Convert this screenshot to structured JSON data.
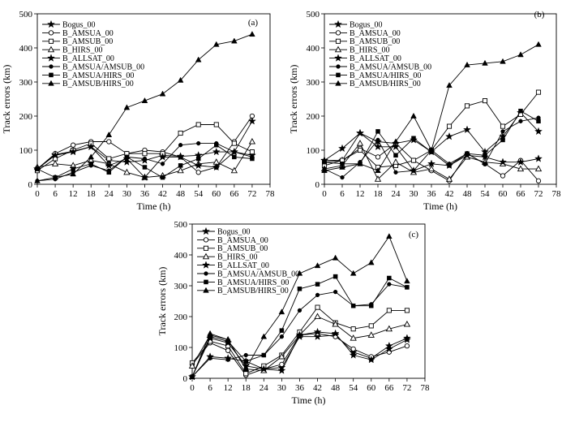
{
  "x_ticks": [
    0,
    6,
    12,
    18,
    24,
    30,
    36,
    42,
    48,
    54,
    60,
    66,
    72,
    78
  ],
  "y_ticks": [
    0,
    100,
    200,
    300,
    400,
    500
  ],
  "chart_data": [
    {
      "type": "line",
      "panel_label": "(a)",
      "xlabel": "Time (h)",
      "ylabel": "Track errors (km)",
      "xlim": [
        0,
        78
      ],
      "ylim": [
        0,
        500
      ],
      "legend_position": "top-left",
      "series": [
        {
          "name": "Bogus_00",
          "marker": "star",
          "x": [
            0,
            6,
            12,
            18,
            24,
            30,
            36,
            42,
            48,
            54,
            60,
            66,
            72
          ],
          "values": [
            45,
            87,
            97,
            110,
            70,
            65,
            70,
            85,
            82,
            85,
            95,
            95,
            85
          ]
        },
        {
          "name": "B_AMSUA_00",
          "marker": "circle",
          "x": [
            0,
            6,
            12,
            18,
            24,
            30,
            36,
            42,
            48,
            54,
            60,
            66,
            72
          ],
          "values": [
            45,
            90,
            115,
            125,
            125,
            90,
            100,
            95,
            80,
            35,
            50,
            125,
            200
          ]
        },
        {
          "name": "B_AMSUB_00",
          "marker": "square-open",
          "x": [
            0,
            6,
            12,
            18,
            24,
            30,
            36,
            42,
            48,
            54,
            60,
            66,
            72
          ],
          "values": [
            40,
            75,
            100,
            120,
            75,
            90,
            90,
            90,
            150,
            175,
            175,
            120,
            95
          ]
        },
        {
          "name": "B_HIRS_00",
          "marker": "triangle-open",
          "x": [
            0,
            6,
            12,
            18,
            24,
            30,
            36,
            42,
            48,
            54,
            60,
            66,
            72
          ],
          "values": [
            50,
            60,
            55,
            70,
            60,
            35,
            20,
            25,
            40,
            60,
            65,
            40,
            125
          ]
        },
        {
          "name": "B_ALLSAT_00",
          "marker": "star",
          "x": [
            0,
            6,
            12,
            18,
            24,
            30,
            36,
            42,
            48,
            54,
            60,
            66,
            72
          ],
          "values": [
            45,
            85,
            95,
            110,
            55,
            75,
            20,
            80,
            80,
            55,
            50,
            95,
            185
          ]
        },
        {
          "name": "B_AMSUA/AMSUB_00",
          "marker": "dot",
          "x": [
            0,
            6,
            12,
            18,
            24,
            30,
            36,
            42,
            48,
            54,
            60,
            66,
            72
          ],
          "values": [
            10,
            15,
            35,
            55,
            40,
            80,
            75,
            60,
            115,
            120,
            120,
            95,
            80
          ]
        },
        {
          "name": "B_AMSUA/HIRS_00",
          "marker": "square",
          "x": [
            0,
            6,
            12,
            18,
            24,
            30,
            36,
            42,
            48,
            54,
            60,
            66,
            72
          ],
          "values": [
            45,
            20,
            45,
            60,
            35,
            80,
            50,
            20,
            55,
            75,
            115,
            80,
            75
          ]
        },
        {
          "name": "B_AMSUB/HIRS_00",
          "marker": "triangle",
          "x": [
            0,
            6,
            12,
            18,
            24,
            30,
            36,
            42,
            48,
            54,
            60,
            66,
            72
          ],
          "values": [
            10,
            20,
            30,
            80,
            145,
            225,
            245,
            265,
            305,
            365,
            410,
            420,
            440
          ]
        }
      ]
    },
    {
      "type": "line",
      "panel_label": "(b)",
      "xlabel": "Time (h)",
      "ylabel": "Track errors (km)",
      "xlim": [
        0,
        78
      ],
      "ylim": [
        0,
        500
      ],
      "legend_position": "top-left",
      "series": [
        {
          "name": "Bogus_00",
          "marker": "star",
          "x": [
            0,
            6,
            12,
            18,
            24,
            30,
            36,
            42,
            48,
            54,
            60,
            66,
            72
          ],
          "values": [
            70,
            70,
            150,
            125,
            120,
            130,
            95,
            140,
            160,
            95,
            140,
            210,
            155
          ]
        },
        {
          "name": "B_AMSUA_00",
          "marker": "circle",
          "x": [
            0,
            6,
            12,
            18,
            24,
            30,
            36,
            42,
            48,
            54,
            60,
            66,
            72
          ],
          "values": [
            65,
            70,
            105,
            80,
            120,
            70,
            40,
            10,
            90,
            60,
            25,
            70,
            10
          ]
        },
        {
          "name": "B_AMSUB_00",
          "marker": "square-open",
          "x": [
            0,
            6,
            12,
            18,
            24,
            30,
            36,
            42,
            48,
            54,
            60,
            66,
            72
          ],
          "values": [
            55,
            70,
            100,
            50,
            55,
            70,
            100,
            170,
            230,
            245,
            170,
            205,
            270
          ]
        },
        {
          "name": "B_HIRS_00",
          "marker": "triangle-open",
          "x": [
            0,
            6,
            12,
            18,
            24,
            30,
            36,
            42,
            48,
            54,
            60,
            66,
            72
          ],
          "values": [
            45,
            55,
            120,
            15,
            65,
            35,
            45,
            15,
            80,
            65,
            60,
            45,
            45
          ]
        },
        {
          "name": "B_ALLSAT_00",
          "marker": "star",
          "x": [
            0,
            6,
            12,
            18,
            24,
            30,
            36,
            42,
            48,
            54,
            60,
            66,
            72
          ],
          "values": [
            70,
            105,
            150,
            110,
            110,
            40,
            60,
            55,
            85,
            80,
            65,
            65,
            75
          ]
        },
        {
          "name": "B_AMSUA/AMSUB_00",
          "marker": "dot",
          "x": [
            0,
            6,
            12,
            18,
            24,
            30,
            36,
            42,
            48,
            54,
            60,
            66,
            72
          ],
          "values": [
            45,
            20,
            65,
            130,
            35,
            40,
            100,
            60,
            90,
            60,
            155,
            185,
            195
          ]
        },
        {
          "name": "B_AMSUA/HIRS_00",
          "marker": "square",
          "x": [
            0,
            6,
            12,
            18,
            24,
            30,
            36,
            42,
            48,
            54,
            60,
            66,
            72
          ],
          "values": [
            65,
            60,
            60,
            155,
            85,
            135,
            95,
            55,
            90,
            85,
            130,
            215,
            185
          ]
        },
        {
          "name": "B_AMSUB/HIRS_00",
          "marker": "triangle",
          "x": [
            0,
            6,
            12,
            18,
            24,
            30,
            36,
            42,
            48,
            54,
            60,
            66,
            72
          ],
          "values": [
            40,
            50,
            60,
            40,
            125,
            200,
            100,
            290,
            350,
            355,
            360,
            380,
            410
          ]
        }
      ]
    },
    {
      "type": "line",
      "panel_label": "(c)",
      "xlabel": "Time (h)",
      "ylabel": "Track errors (km)",
      "xlim": [
        0,
        78
      ],
      "ylim": [
        0,
        500
      ],
      "legend_position": "top-left",
      "series": [
        {
          "name": "Bogus_00",
          "marker": "star",
          "x": [
            0,
            6,
            12,
            18,
            24,
            30,
            36,
            42,
            48,
            54,
            60,
            66,
            72
          ],
          "values": [
            5,
            70,
            65,
            55,
            30,
            35,
            135,
            135,
            140,
            85,
            65,
            105,
            130
          ]
        },
        {
          "name": "B_AMSUA_00",
          "marker": "circle",
          "x": [
            0,
            6,
            12,
            18,
            24,
            30,
            36,
            42,
            48,
            54,
            60,
            66,
            72
          ],
          "values": [
            45,
            115,
            90,
            10,
            30,
            45,
            140,
            145,
            135,
            95,
            70,
            85,
            105
          ]
        },
        {
          "name": "B_AMSUB_00",
          "marker": "square-open",
          "x": [
            0,
            6,
            12,
            18,
            24,
            30,
            36,
            42,
            48,
            54,
            60,
            66,
            72
          ],
          "values": [
            50,
            120,
            105,
            15,
            40,
            75,
            150,
            230,
            180,
            160,
            170,
            220,
            220
          ]
        },
        {
          "name": "B_HIRS_00",
          "marker": "triangle-open",
          "x": [
            0,
            6,
            12,
            18,
            24,
            30,
            36,
            42,
            48,
            54,
            60,
            66,
            72
          ],
          "values": [
            40,
            140,
            125,
            30,
            25,
            70,
            140,
            200,
            175,
            130,
            140,
            160,
            175
          ]
        },
        {
          "name": "B_ALLSAT_00",
          "marker": "star",
          "x": [
            0,
            6,
            12,
            18,
            24,
            30,
            36,
            42,
            48,
            54,
            60,
            66,
            72
          ],
          "values": [
            5,
            130,
            115,
            40,
            30,
            25,
            140,
            150,
            145,
            75,
            60,
            95,
            125
          ]
        },
        {
          "name": "B_AMSUA/AMSUB_00",
          "marker": "dot",
          "x": [
            0,
            6,
            12,
            18,
            24,
            30,
            36,
            42,
            48,
            54,
            60,
            66,
            72
          ],
          "values": [
            5,
            65,
            60,
            75,
            75,
            135,
            220,
            270,
            280,
            235,
            240,
            305,
            295
          ]
        },
        {
          "name": "B_AMSUA/HIRS_00",
          "marker": "square",
          "x": [
            0,
            6,
            12,
            18,
            24,
            30,
            36,
            42,
            48,
            54,
            60,
            66,
            72
          ],
          "values": [
            5,
            135,
            120,
            55,
            75,
            155,
            290,
            305,
            330,
            235,
            235,
            325,
            295
          ]
        },
        {
          "name": "B_AMSUB/HIRS_00",
          "marker": "triangle",
          "x": [
            0,
            6,
            12,
            18,
            24,
            30,
            36,
            42,
            48,
            54,
            60,
            66,
            72
          ],
          "values": [
            5,
            145,
            125,
            30,
            135,
            215,
            340,
            365,
            390,
            340,
            375,
            460,
            315
          ]
        }
      ]
    }
  ]
}
